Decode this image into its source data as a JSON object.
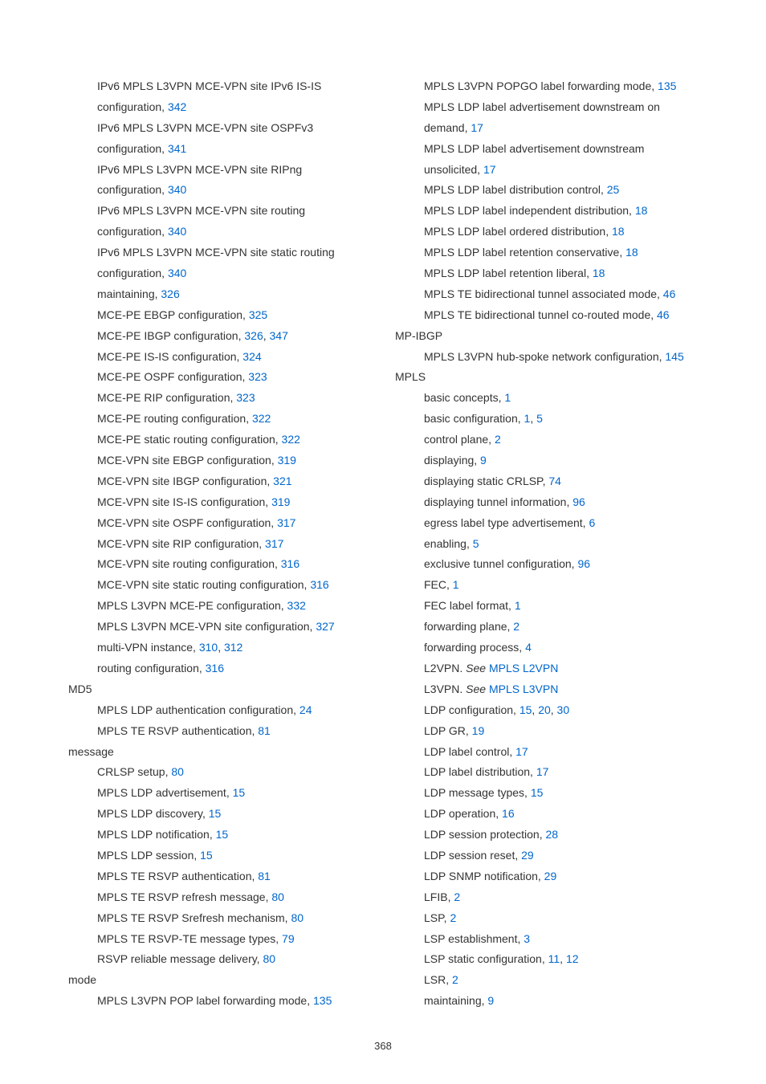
{
  "page_number": "368",
  "left_column": [
    {
      "type": "entry",
      "parts": [
        {
          "text": "IPv6 MPLS L3VPN MCE-VPN site IPv6 IS-IS configuration, "
        },
        {
          "text": "342",
          "link": true
        }
      ]
    },
    {
      "type": "entry",
      "parts": [
        {
          "text": "IPv6 MPLS L3VPN MCE-VPN site OSPFv3 configuration, "
        },
        {
          "text": "341",
          "link": true
        }
      ]
    },
    {
      "type": "entry",
      "parts": [
        {
          "text": "IPv6 MPLS L3VPN MCE-VPN site RIPng configuration, "
        },
        {
          "text": "340",
          "link": true
        }
      ]
    },
    {
      "type": "entry",
      "parts": [
        {
          "text": "IPv6 MPLS L3VPN MCE-VPN site routing configuration, "
        },
        {
          "text": "340",
          "link": true
        }
      ]
    },
    {
      "type": "entry",
      "parts": [
        {
          "text": "IPv6 MPLS L3VPN MCE-VPN site static routing configuration, "
        },
        {
          "text": "340",
          "link": true
        }
      ]
    },
    {
      "type": "entry",
      "parts": [
        {
          "text": "maintaining, "
        },
        {
          "text": "326",
          "link": true
        }
      ]
    },
    {
      "type": "entry",
      "parts": [
        {
          "text": "MCE-PE EBGP configuration, "
        },
        {
          "text": "325",
          "link": true
        }
      ]
    },
    {
      "type": "entry",
      "parts": [
        {
          "text": "MCE-PE IBGP configuration, "
        },
        {
          "text": "326",
          "link": true
        },
        {
          "text": ", "
        },
        {
          "text": "347",
          "link": true
        }
      ]
    },
    {
      "type": "entry",
      "parts": [
        {
          "text": "MCE-PE IS-IS configuration, "
        },
        {
          "text": "324",
          "link": true
        }
      ]
    },
    {
      "type": "entry",
      "parts": [
        {
          "text": "MCE-PE OSPF configuration, "
        },
        {
          "text": "323",
          "link": true
        }
      ]
    },
    {
      "type": "entry",
      "parts": [
        {
          "text": "MCE-PE RIP configuration, "
        },
        {
          "text": "323",
          "link": true
        }
      ]
    },
    {
      "type": "entry",
      "parts": [
        {
          "text": "MCE-PE routing configuration, "
        },
        {
          "text": "322",
          "link": true
        }
      ]
    },
    {
      "type": "entry",
      "parts": [
        {
          "text": "MCE-PE static routing configuration, "
        },
        {
          "text": "322",
          "link": true
        }
      ]
    },
    {
      "type": "entry",
      "parts": [
        {
          "text": "MCE-VPN site EBGP configuration, "
        },
        {
          "text": "319",
          "link": true
        }
      ]
    },
    {
      "type": "entry",
      "parts": [
        {
          "text": "MCE-VPN site IBGP configuration, "
        },
        {
          "text": "321",
          "link": true
        }
      ]
    },
    {
      "type": "entry",
      "parts": [
        {
          "text": "MCE-VPN site IS-IS configuration, "
        },
        {
          "text": "319",
          "link": true
        }
      ]
    },
    {
      "type": "entry",
      "parts": [
        {
          "text": "MCE-VPN site OSPF configuration, "
        },
        {
          "text": "317",
          "link": true
        }
      ]
    },
    {
      "type": "entry",
      "parts": [
        {
          "text": "MCE-VPN site RIP configuration, "
        },
        {
          "text": "317",
          "link": true
        }
      ]
    },
    {
      "type": "entry",
      "parts": [
        {
          "text": "MCE-VPN site routing configuration, "
        },
        {
          "text": "316",
          "link": true
        }
      ]
    },
    {
      "type": "entry",
      "parts": [
        {
          "text": "MCE-VPN site static routing configuration, "
        },
        {
          "text": "316",
          "link": true
        }
      ]
    },
    {
      "type": "entry",
      "parts": [
        {
          "text": "MPLS L3VPN MCE-PE configuration, "
        },
        {
          "text": "332",
          "link": true
        }
      ]
    },
    {
      "type": "entry",
      "parts": [
        {
          "text": "MPLS L3VPN MCE-VPN site configuration, "
        },
        {
          "text": "327",
          "link": true
        }
      ]
    },
    {
      "type": "entry",
      "parts": [
        {
          "text": "multi-VPN instance, "
        },
        {
          "text": "310",
          "link": true
        },
        {
          "text": ", "
        },
        {
          "text": "312",
          "link": true
        }
      ]
    },
    {
      "type": "entry",
      "parts": [
        {
          "text": "routing configuration, "
        },
        {
          "text": "316",
          "link": true
        }
      ]
    },
    {
      "type": "heading",
      "parts": [
        {
          "text": "MD5"
        }
      ]
    },
    {
      "type": "entry",
      "parts": [
        {
          "text": "MPLS LDP authentication configuration, "
        },
        {
          "text": "24",
          "link": true
        }
      ]
    },
    {
      "type": "entry",
      "parts": [
        {
          "text": "MPLS TE RSVP authentication, "
        },
        {
          "text": "81",
          "link": true
        }
      ]
    },
    {
      "type": "heading",
      "parts": [
        {
          "text": "message"
        }
      ]
    },
    {
      "type": "entry",
      "parts": [
        {
          "text": "CRLSP setup, "
        },
        {
          "text": "80",
          "link": true
        }
      ]
    },
    {
      "type": "entry",
      "parts": [
        {
          "text": "MPLS LDP advertisement, "
        },
        {
          "text": "15",
          "link": true
        }
      ]
    },
    {
      "type": "entry",
      "parts": [
        {
          "text": "MPLS LDP discovery, "
        },
        {
          "text": "15",
          "link": true
        }
      ]
    },
    {
      "type": "entry",
      "parts": [
        {
          "text": "MPLS LDP notification, "
        },
        {
          "text": "15",
          "link": true
        }
      ]
    },
    {
      "type": "entry",
      "parts": [
        {
          "text": "MPLS LDP session, "
        },
        {
          "text": "15",
          "link": true
        }
      ]
    },
    {
      "type": "entry",
      "parts": [
        {
          "text": "MPLS TE RSVP authentication, "
        },
        {
          "text": "81",
          "link": true
        }
      ]
    },
    {
      "type": "entry",
      "parts": [
        {
          "text": "MPLS TE RSVP refresh message, "
        },
        {
          "text": "80",
          "link": true
        }
      ]
    },
    {
      "type": "entry",
      "parts": [
        {
          "text": "MPLS TE RSVP Srefresh mechanism, "
        },
        {
          "text": "80",
          "link": true
        }
      ]
    },
    {
      "type": "entry",
      "parts": [
        {
          "text": "MPLS TE RSVP-TE message types, "
        },
        {
          "text": "79",
          "link": true
        }
      ]
    },
    {
      "type": "entry",
      "parts": [
        {
          "text": "RSVP reliable message delivery, "
        },
        {
          "text": "80",
          "link": true
        }
      ]
    },
    {
      "type": "heading",
      "parts": [
        {
          "text": "mode"
        }
      ]
    },
    {
      "type": "entry",
      "parts": [
        {
          "text": "MPLS L3VPN POP label forwarding mode, "
        },
        {
          "text": "135",
          "link": true
        }
      ]
    }
  ],
  "right_column": [
    {
      "type": "entry",
      "parts": [
        {
          "text": "MPLS L3VPN POPGO label forwarding mode, "
        },
        {
          "text": "135",
          "link": true
        }
      ]
    },
    {
      "type": "entry",
      "parts": [
        {
          "text": "MPLS LDP label advertisement downstream on demand, "
        },
        {
          "text": "17",
          "link": true
        }
      ]
    },
    {
      "type": "entry",
      "parts": [
        {
          "text": "MPLS LDP label advertisement downstream unsolicited, "
        },
        {
          "text": "17",
          "link": true
        }
      ]
    },
    {
      "type": "entry",
      "parts": [
        {
          "text": "MPLS LDP label distribution control, "
        },
        {
          "text": "25",
          "link": true
        }
      ]
    },
    {
      "type": "entry",
      "parts": [
        {
          "text": "MPLS LDP label independent distribution, "
        },
        {
          "text": "18",
          "link": true
        }
      ]
    },
    {
      "type": "entry",
      "parts": [
        {
          "text": "MPLS LDP label ordered distribution, "
        },
        {
          "text": "18",
          "link": true
        }
      ]
    },
    {
      "type": "entry",
      "parts": [
        {
          "text": "MPLS LDP label retention conservative, "
        },
        {
          "text": "18",
          "link": true
        }
      ]
    },
    {
      "type": "entry",
      "parts": [
        {
          "text": "MPLS LDP label retention liberal, "
        },
        {
          "text": "18",
          "link": true
        }
      ]
    },
    {
      "type": "entry",
      "parts": [
        {
          "text": "MPLS TE bidirectional tunnel associated mode, "
        },
        {
          "text": "46",
          "link": true
        }
      ]
    },
    {
      "type": "entry",
      "parts": [
        {
          "text": "MPLS TE bidirectional tunnel co-routed mode, "
        },
        {
          "text": "46",
          "link": true
        }
      ]
    },
    {
      "type": "heading",
      "parts": [
        {
          "text": "MP-IBGP"
        }
      ]
    },
    {
      "type": "entry",
      "parts": [
        {
          "text": "MPLS L3VPN hub-spoke network configuration, "
        },
        {
          "text": "145",
          "link": true
        }
      ]
    },
    {
      "type": "heading",
      "parts": [
        {
          "text": "MPLS"
        }
      ]
    },
    {
      "type": "entry",
      "parts": [
        {
          "text": "basic concepts, "
        },
        {
          "text": "1",
          "link": true
        }
      ]
    },
    {
      "type": "entry",
      "parts": [
        {
          "text": "basic configuration, "
        },
        {
          "text": "1",
          "link": true
        },
        {
          "text": ", "
        },
        {
          "text": "5",
          "link": true
        }
      ]
    },
    {
      "type": "entry",
      "parts": [
        {
          "text": "control plane, "
        },
        {
          "text": "2",
          "link": true
        }
      ]
    },
    {
      "type": "entry",
      "parts": [
        {
          "text": "displaying, "
        },
        {
          "text": "9",
          "link": true
        }
      ]
    },
    {
      "type": "entry",
      "parts": [
        {
          "text": "displaying static CRLSP, "
        },
        {
          "text": "74",
          "link": true
        }
      ]
    },
    {
      "type": "entry",
      "parts": [
        {
          "text": "displaying tunnel information, "
        },
        {
          "text": "96",
          "link": true
        }
      ]
    },
    {
      "type": "entry",
      "parts": [
        {
          "text": "egress label type advertisement, "
        },
        {
          "text": "6",
          "link": true
        }
      ]
    },
    {
      "type": "entry",
      "parts": [
        {
          "text": "enabling, "
        },
        {
          "text": "5",
          "link": true
        }
      ]
    },
    {
      "type": "entry",
      "parts": [
        {
          "text": "exclusive tunnel configuration, "
        },
        {
          "text": "96",
          "link": true
        }
      ]
    },
    {
      "type": "entry",
      "parts": [
        {
          "text": "FEC, "
        },
        {
          "text": "1",
          "link": true
        }
      ]
    },
    {
      "type": "entry",
      "parts": [
        {
          "text": "FEC label format, "
        },
        {
          "text": "1",
          "link": true
        }
      ]
    },
    {
      "type": "entry",
      "parts": [
        {
          "text": "forwarding plane, "
        },
        {
          "text": "2",
          "link": true
        }
      ]
    },
    {
      "type": "entry",
      "parts": [
        {
          "text": "forwarding process, "
        },
        {
          "text": "4",
          "link": true
        }
      ]
    },
    {
      "type": "entry",
      "parts": [
        {
          "text": "L2VPN. "
        },
        {
          "text": "See",
          "italic": true
        },
        {
          "text": " "
        },
        {
          "text": "MPLS L2VPN",
          "link": true
        }
      ]
    },
    {
      "type": "entry",
      "parts": [
        {
          "text": "L3VPN. "
        },
        {
          "text": "See",
          "italic": true
        },
        {
          "text": " "
        },
        {
          "text": "MPLS L3VPN",
          "link": true
        }
      ]
    },
    {
      "type": "entry",
      "parts": [
        {
          "text": "LDP configuration, "
        },
        {
          "text": "15",
          "link": true
        },
        {
          "text": ", "
        },
        {
          "text": "20",
          "link": true
        },
        {
          "text": ", "
        },
        {
          "text": "30",
          "link": true
        }
      ]
    },
    {
      "type": "entry",
      "parts": [
        {
          "text": "LDP GR, "
        },
        {
          "text": "19",
          "link": true
        }
      ]
    },
    {
      "type": "entry",
      "parts": [
        {
          "text": "LDP label control, "
        },
        {
          "text": "17",
          "link": true
        }
      ]
    },
    {
      "type": "entry",
      "parts": [
        {
          "text": "LDP label distribution, "
        },
        {
          "text": "17",
          "link": true
        }
      ]
    },
    {
      "type": "entry",
      "parts": [
        {
          "text": "LDP message types, "
        },
        {
          "text": "15",
          "link": true
        }
      ]
    },
    {
      "type": "entry",
      "parts": [
        {
          "text": "LDP operation, "
        },
        {
          "text": "16",
          "link": true
        }
      ]
    },
    {
      "type": "entry",
      "parts": [
        {
          "text": "LDP session protection, "
        },
        {
          "text": "28",
          "link": true
        }
      ]
    },
    {
      "type": "entry",
      "parts": [
        {
          "text": "LDP session reset, "
        },
        {
          "text": "29",
          "link": true
        }
      ]
    },
    {
      "type": "entry",
      "parts": [
        {
          "text": "LDP SNMP notification, "
        },
        {
          "text": "29",
          "link": true
        }
      ]
    },
    {
      "type": "entry",
      "parts": [
        {
          "text": "LFIB, "
        },
        {
          "text": "2",
          "link": true
        }
      ]
    },
    {
      "type": "entry",
      "parts": [
        {
          "text": "LSP, "
        },
        {
          "text": "2",
          "link": true
        }
      ]
    },
    {
      "type": "entry",
      "parts": [
        {
          "text": "LSP establishment, "
        },
        {
          "text": "3",
          "link": true
        }
      ]
    },
    {
      "type": "entry",
      "parts": [
        {
          "text": "LSP static configuration, "
        },
        {
          "text": "11",
          "link": true
        },
        {
          "text": ", "
        },
        {
          "text": "12",
          "link": true
        }
      ]
    },
    {
      "type": "entry",
      "parts": [
        {
          "text": "LSR, "
        },
        {
          "text": "2",
          "link": true
        }
      ]
    },
    {
      "type": "entry",
      "parts": [
        {
          "text": "maintaining, "
        },
        {
          "text": "9",
          "link": true
        }
      ]
    }
  ]
}
